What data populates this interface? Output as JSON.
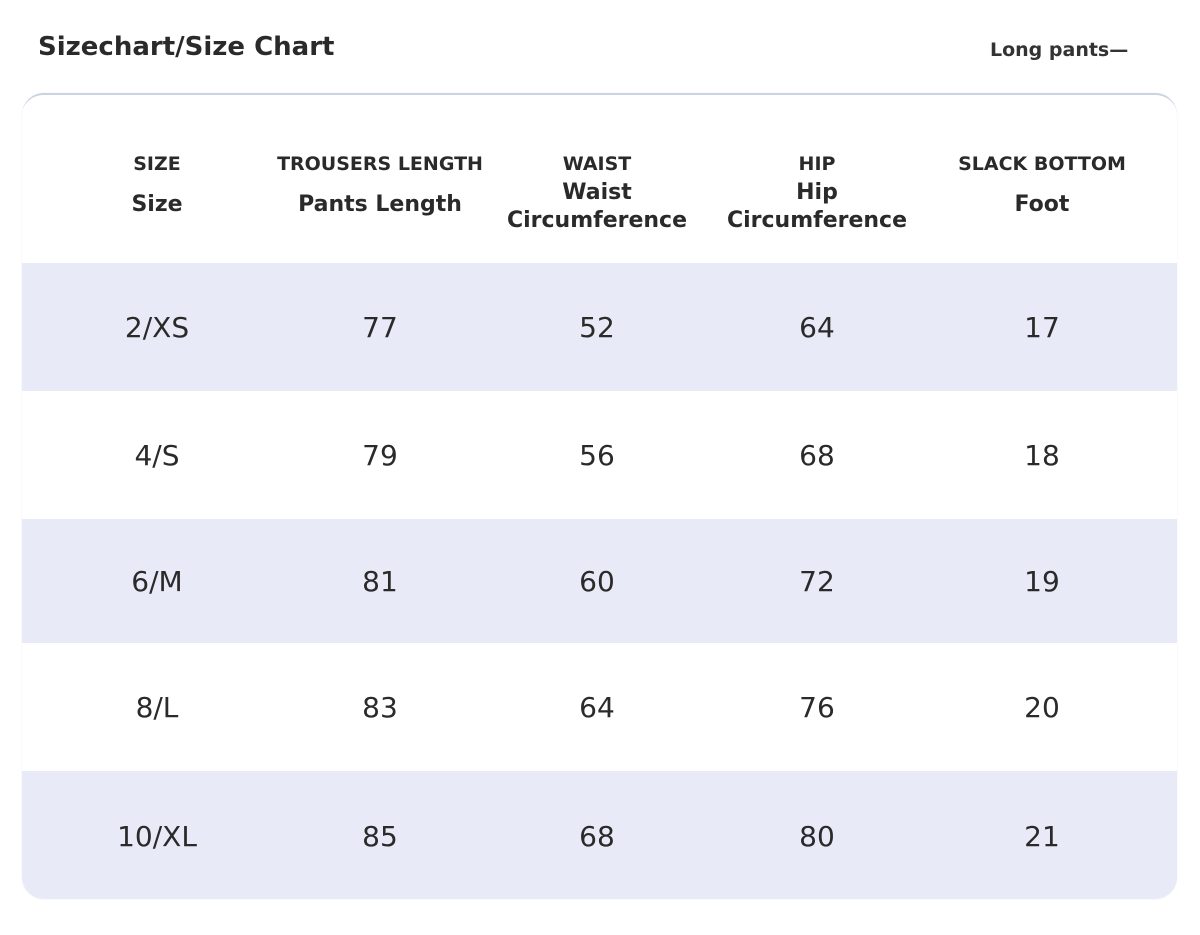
{
  "title": "Sizechart/Size Chart",
  "subtitle": "Long pants—",
  "table": {
    "headers": [
      {
        "en": "SIZE",
        "cn": "Size"
      },
      {
        "en": "TROUSERS LENGTH",
        "cn": "Pants Length"
      },
      {
        "en": "WAIST",
        "cn": "Waist\nCircumference"
      },
      {
        "en": "HIP",
        "cn": "Hip\nCircumference"
      },
      {
        "en": "SLACK BOTTOM",
        "cn": "Foot"
      }
    ],
    "rows": [
      [
        "2/XS",
        "77",
        "52",
        "64",
        "17"
      ],
      [
        "4/S",
        "79",
        "56",
        "68",
        "18"
      ],
      [
        "6/M",
        "81",
        "60",
        "72",
        "19"
      ],
      [
        "8/L",
        "83",
        "64",
        "76",
        "20"
      ],
      [
        "10/XL",
        "85",
        "68",
        "80",
        "21"
      ]
    ]
  },
  "colors": {
    "shaded_row": "#e8ebf7",
    "plain_row": "#ffffff",
    "text": "#2a2a2a"
  }
}
